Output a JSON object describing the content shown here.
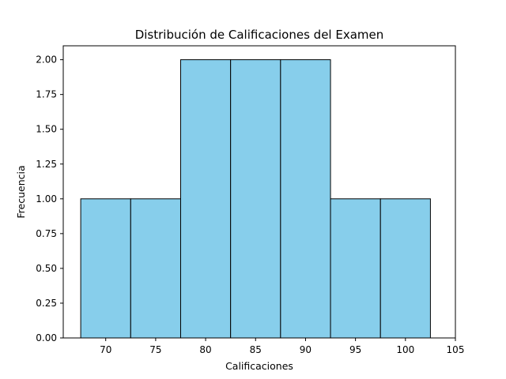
{
  "chart_data": {
    "type": "bar",
    "title": "Distribución de Calificaciones del Examen",
    "xlabel": "Calificaciones",
    "ylabel": "Frecuencia",
    "bin_edges": [
      67.5,
      72.5,
      77.5,
      82.5,
      87.5,
      92.5,
      97.5,
      102.5
    ],
    "values": [
      1,
      1,
      2,
      2,
      2,
      1,
      1
    ],
    "xlim": [
      65.75,
      105
    ],
    "ylim": [
      0,
      2.1
    ],
    "x_ticks": [
      70,
      75,
      80,
      85,
      90,
      95,
      100,
      105
    ],
    "x_tick_labels": [
      "70",
      "75",
      "80",
      "85",
      "90",
      "95",
      "100",
      "105"
    ],
    "y_ticks": [
      0,
      0.25,
      0.5,
      0.75,
      1.0,
      1.25,
      1.5,
      1.75,
      2.0
    ],
    "y_tick_labels": [
      "0.00",
      "0.25",
      "0.50",
      "0.75",
      "1.00",
      "1.25",
      "1.50",
      "1.75",
      "2.00"
    ],
    "grid": false,
    "colors": {
      "bar_fill": "#87ceeb",
      "bar_edge": "#000000",
      "axes": "#000000"
    }
  }
}
